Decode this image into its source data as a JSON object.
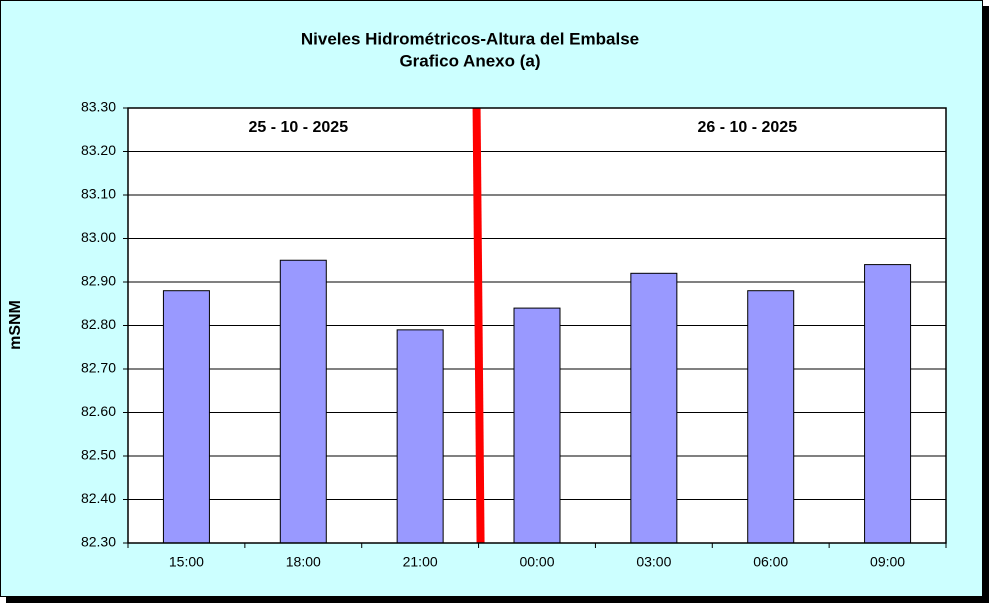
{
  "chart_data": {
    "type": "bar",
    "title": "Niveles Hidrométricos-Altura del Embalse",
    "subtitle": "Grafico Anexo (a)",
    "y_label": "mSNM",
    "annotations": [
      "25 - 10 - 2025",
      "26 - 10 - 2025"
    ],
    "categories": [
      "15:00",
      "18:00",
      "21:00",
      "00:00",
      "03:00",
      "06:00",
      "09:00"
    ],
    "values": [
      82.88,
      82.95,
      82.79,
      82.84,
      82.92,
      82.88,
      82.94
    ],
    "color": "#9999ff",
    "ylim": [
      82.3,
      83.3
    ],
    "yticks": [
      {
        "value": 82.3,
        "label": "82.30"
      },
      {
        "value": 82.4,
        "label": "82.40"
      },
      {
        "value": 82.5,
        "label": "82.50"
      },
      {
        "value": 82.6,
        "label": "82.60"
      },
      {
        "value": 82.7,
        "label": "82.70"
      },
      {
        "value": 82.8,
        "label": "82.80"
      },
      {
        "value": 82.9,
        "label": "82.90"
      },
      {
        "value": 83.0,
        "label": "83.00"
      },
      {
        "value": 83.1,
        "label": "83.10"
      },
      {
        "value": 83.2,
        "label": "83.20"
      },
      {
        "value": 83.3,
        "label": "83.30"
      }
    ],
    "grid": true
  }
}
